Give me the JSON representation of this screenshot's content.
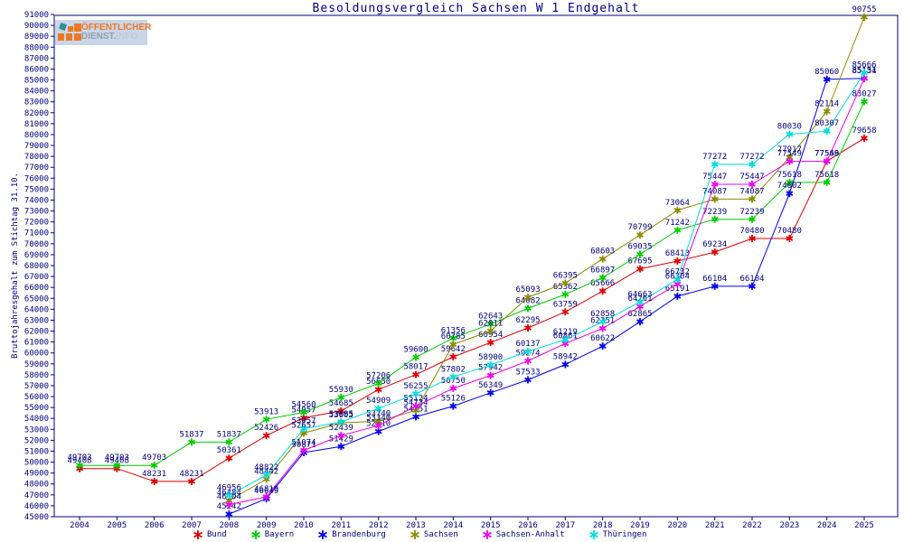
{
  "title": "Besoldungsvergleich Sachsen W 1 Endgehalt",
  "y_axis_title": "Bruttojahresgehalt zum Stichtag 31.10.",
  "logo": {
    "line1": "ÖFFENTLICHER",
    "line2_part1": "DIENST.",
    "line2_part2": "INFO"
  },
  "colors": {
    "axis_text": "#000080",
    "frame": "#000080",
    "background": "#ffffff",
    "logo_bg": "#c9d6e8",
    "logo_orange": "#ee7722",
    "logo_gray": "#8fa0b2"
  },
  "chart_data": {
    "type": "line",
    "title": "Besoldungsvergleich Sachsen W 1 Endgehalt",
    "xlabel": "",
    "ylabel": "Bruttojahresgehalt zum Stichtag 31.10.",
    "ylim": [
      45000,
      91000
    ],
    "ytick_step": 1000,
    "grid": false,
    "legend_position": "bottom",
    "marker": "asterisk",
    "x": [
      2004,
      2005,
      2006,
      2007,
      2008,
      2009,
      2010,
      2011,
      2012,
      2013,
      2014,
      2015,
      2016,
      2017,
      2018,
      2019,
      2020,
      2021,
      2022,
      2023,
      2024,
      2025
    ],
    "series": [
      {
        "name": "Bund",
        "color": "#dd0000",
        "values": [
          49408,
          49408,
          48231,
          48231,
          50361,
          52426,
          54057,
          54685,
          56650,
          58017,
          59642,
          60954,
          62295,
          63759,
          65666,
          67695,
          68413,
          69234,
          70480,
          70480,
          77568,
          79658
        ]
      },
      {
        "name": "Bayern",
        "color": "#00cc00",
        "values": [
          49703,
          49703,
          49703,
          51837,
          51837,
          53913,
          54560,
          55930,
          57206,
          59600,
          61356,
          62643,
          64082,
          65362,
          66897,
          69035,
          71242,
          72239,
          72239,
          75618,
          75618,
          83027
        ]
      },
      {
        "name": "Brandenburg",
        "color": "#0000ee",
        "values": [
          null,
          null,
          null,
          null,
          45242,
          46649,
          50871,
          51429,
          52810,
          54151,
          55126,
          56349,
          57533,
          58942,
          60622,
          62865,
          65191,
          66104,
          66104,
          74602,
          85060,
          85151
        ]
      },
      {
        "name": "Sachsen",
        "color": "#8b8b00",
        "values": [
          null,
          null,
          null,
          null,
          46484,
          48442,
          52657,
          53605,
          53740,
          54734,
          60785,
          62011,
          65093,
          66395,
          68603,
          70799,
          73064,
          74087,
          74087,
          77917,
          82114,
          90755
        ]
      },
      {
        "name": "Sachsen-Anhalt",
        "color": "#ee00ee",
        "values": [
          null,
          null,
          null,
          null,
          46104,
          46819,
          51074,
          52439,
          53340,
          55124,
          56750,
          57942,
          59274,
          60861,
          62251,
          64261,
          66304,
          75447,
          75447,
          77549,
          77549,
          85134
        ]
      },
      {
        "name": "Thüringen",
        "color": "#00dddd",
        "values": [
          null,
          null,
          null,
          null,
          46956,
          48822,
          53057,
          53685,
          54909,
          56255,
          57802,
          58900,
          60137,
          61219,
          62858,
          64663,
          66732,
          77272,
          77272,
          80030,
          80307,
          85666
        ]
      }
    ]
  }
}
